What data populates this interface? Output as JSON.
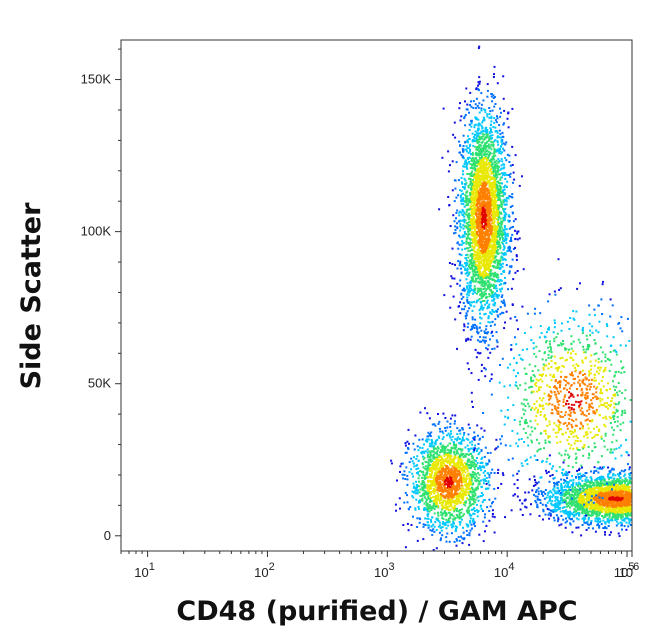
{
  "chart_data": {
    "type": "scatter",
    "title": "",
    "xlabel": "CD48 (purified) / GAM APC",
    "ylabel": "Side Scatter",
    "x_scale": "log",
    "y_scale": "linear",
    "xlim": [
      6,
      110000
    ],
    "ylim": [
      -5000,
      163000
    ],
    "x_ticks": [
      {
        "value": 10,
        "base": "10",
        "exp": "1"
      },
      {
        "value": 100,
        "base": "10",
        "exp": "2"
      },
      {
        "value": 1000,
        "base": "10",
        "exp": "3"
      },
      {
        "value": 10000,
        "base": "10",
        "exp": "4"
      },
      {
        "value": 100000,
        "base": "10",
        "exp": "5"
      },
      {
        "value": 1000000,
        "base": "10",
        "exp": "6"
      }
    ],
    "y_ticks": [
      {
        "value": 0,
        "label": "0"
      },
      {
        "value": 50000,
        "label": "50K"
      },
      {
        "value": 100000,
        "label": "100K"
      },
      {
        "value": 150000,
        "label": "150K"
      }
    ],
    "grid": false,
    "legend": "none",
    "color_scale": [
      "#1010e0",
      "#0070ff",
      "#00c8ff",
      "#30e070",
      "#e8e800",
      "#ff8000",
      "#e00000"
    ],
    "populations": [
      {
        "name": "",
        "center_x": 6300,
        "center_y": 105000,
        "spread_x_log10": 0.1,
        "spread_y": 17000,
        "points": 3200
      },
      {
        "name": "",
        "center_x": 3200,
        "center_y": 18000,
        "spread_x_log10": 0.16,
        "spread_y": 8000,
        "points": 1800
      },
      {
        "name": "",
        "center_x": 80000,
        "center_y": 12500,
        "spread_x_log10": 0.28,
        "spread_y": 4000,
        "points": 3000
      },
      {
        "name": "",
        "center_x": 35000,
        "center_y": 45000,
        "spread_x_log10": 0.3,
        "spread_y": 14000,
        "points": 1000
      }
    ]
  }
}
